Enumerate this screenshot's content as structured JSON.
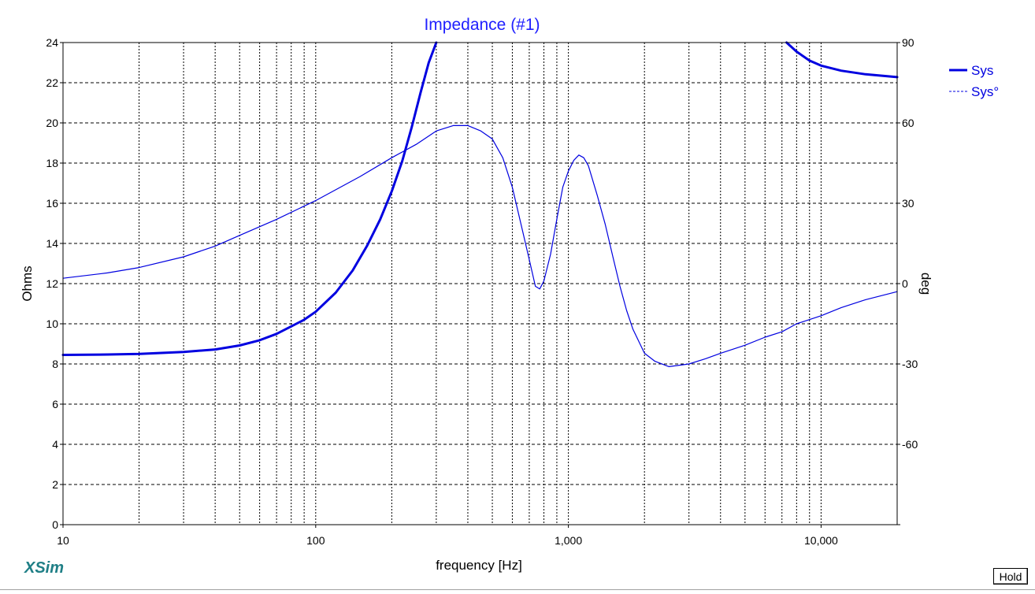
{
  "app": {
    "brand": "XSim"
  },
  "controls": {
    "hold_label": "Hold"
  },
  "colors": {
    "trace": "#0000e0",
    "title": "#2020ff",
    "grid": "#000000",
    "brand": "#1f7f86"
  },
  "chart_data": {
    "type": "line",
    "title": "Impedance (#1)",
    "xlabel": "frequency [Hz]",
    "ylabel": "Ohms",
    "y2label": "deg",
    "xscale": "log",
    "xlim": [
      10,
      20000
    ],
    "ylim": [
      0,
      24
    ],
    "y2lim": [
      -90,
      90
    ],
    "x_ticks": [
      10,
      100,
      1000,
      10000
    ],
    "x_tick_labels": [
      "10",
      "100",
      "1,000",
      "10,000"
    ],
    "y_ticks": [
      0,
      2,
      4,
      6,
      8,
      10,
      12,
      14,
      16,
      18,
      20,
      22,
      24
    ],
    "y_tick_labels": [
      "0",
      "2",
      "4",
      "6",
      "8",
      "10",
      "12",
      "14",
      "16",
      "18",
      "20",
      "22",
      "24"
    ],
    "y2_ticks": [
      -90,
      -60,
      -30,
      0,
      30,
      60,
      90
    ],
    "y2_tick_labels": [
      "",
      "-60",
      "-30",
      "0",
      "30",
      "60",
      "90"
    ],
    "grid": true,
    "legend_position": "top-right",
    "series": [
      {
        "name": "Sys",
        "axis": "left",
        "style": "solid-thick",
        "points": [
          [
            10,
            8.45
          ],
          [
            15,
            8.47
          ],
          [
            20,
            8.5
          ],
          [
            30,
            8.6
          ],
          [
            40,
            8.72
          ],
          [
            50,
            8.92
          ],
          [
            60,
            9.18
          ],
          [
            70,
            9.5
          ],
          [
            80,
            9.87
          ],
          [
            90,
            10.2
          ],
          [
            100,
            10.6
          ],
          [
            120,
            11.55
          ],
          [
            140,
            12.65
          ],
          [
            160,
            13.9
          ],
          [
            180,
            15.2
          ],
          [
            200,
            16.6
          ],
          [
            220,
            18.1
          ],
          [
            240,
            19.8
          ],
          [
            260,
            21.5
          ],
          [
            280,
            23.0
          ],
          [
            300,
            24.0
          ]
        ]
      },
      {
        "name": "Sys",
        "axis": "left",
        "style": "solid-thick",
        "points": [
          [
            7300,
            24.0
          ],
          [
            8000,
            23.55
          ],
          [
            9000,
            23.1
          ],
          [
            10000,
            22.85
          ],
          [
            12000,
            22.6
          ],
          [
            15000,
            22.42
          ],
          [
            20000,
            22.28
          ]
        ]
      },
      {
        "name": "Sys°",
        "axis": "right",
        "style": "dashed",
        "points": [
          [
            10,
            2
          ],
          [
            15,
            4
          ],
          [
            20,
            6
          ],
          [
            30,
            10
          ],
          [
            40,
            14
          ],
          [
            50,
            18
          ],
          [
            70,
            24
          ],
          [
            100,
            31
          ],
          [
            150,
            40
          ],
          [
            200,
            47
          ],
          [
            250,
            52
          ],
          [
            300,
            57
          ],
          [
            350,
            59
          ],
          [
            400,
            59
          ],
          [
            450,
            57
          ],
          [
            500,
            54
          ],
          [
            550,
            47
          ],
          [
            600,
            36
          ],
          [
            650,
            22
          ],
          [
            700,
            9
          ],
          [
            740,
            -1
          ],
          [
            770,
            -2
          ],
          [
            800,
            1
          ],
          [
            850,
            11
          ],
          [
            900,
            24
          ],
          [
            950,
            36
          ],
          [
            1000,
            42
          ],
          [
            1050,
            46
          ],
          [
            1100,
            48
          ],
          [
            1150,
            47
          ],
          [
            1200,
            44
          ],
          [
            1300,
            33
          ],
          [
            1400,
            22
          ],
          [
            1500,
            10
          ],
          [
            1600,
            -1
          ],
          [
            1700,
            -10
          ],
          [
            1800,
            -17
          ],
          [
            2000,
            -26
          ],
          [
            2200,
            -29
          ],
          [
            2500,
            -31
          ],
          [
            3000,
            -30
          ],
          [
            3500,
            -28
          ],
          [
            4000,
            -26
          ],
          [
            5000,
            -23
          ],
          [
            6000,
            -20
          ],
          [
            7000,
            -18
          ],
          [
            8000,
            -15
          ],
          [
            10000,
            -12
          ],
          [
            12000,
            -9
          ],
          [
            15000,
            -6
          ],
          [
            20000,
            -3
          ]
        ]
      }
    ]
  }
}
